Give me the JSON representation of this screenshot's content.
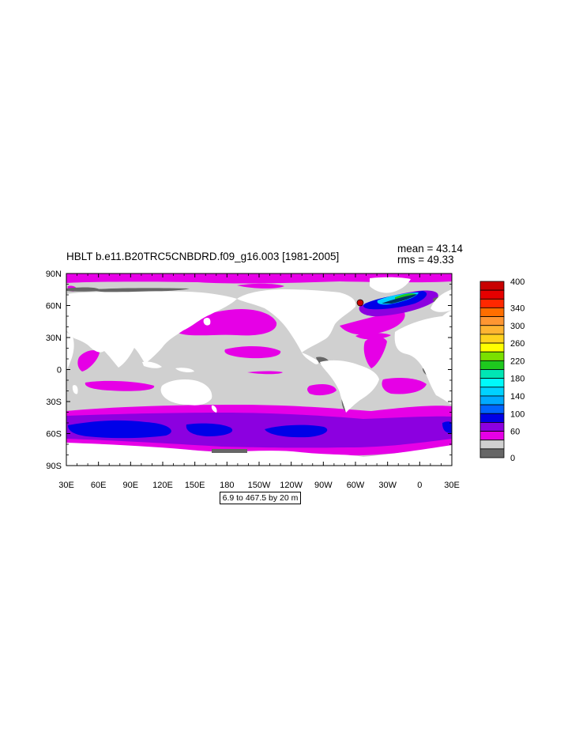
{
  "figure": {
    "title": "HBLT b.e11.B20TRC5CNBDRD.f09_g16.003 [1981-2005]",
    "mean_text": "mean = 43.14",
    "rms_text": "rms = 49.33",
    "contour_info": "6.9 to 467.5 by 20 m"
  },
  "map": {
    "variable": "HBLT",
    "projection": "cylindrical equidistant",
    "lon_range": [
      "30E",
      "30E"
    ],
    "lat_range": [
      "90S",
      "90N"
    ],
    "lat_ticks": [
      "90N",
      "60N",
      "30N",
      "0",
      "30S",
      "60S",
      "90S"
    ],
    "lon_ticks": [
      "30E",
      "60E",
      "90E",
      "120E",
      "150E",
      "180",
      "150W",
      "120W",
      "90W",
      "60W",
      "30W",
      "0",
      "30E"
    ],
    "land_color": "#ffffff",
    "colors": {
      "magenta": "#e600e6",
      "purple": "#8c00e0",
      "blue": "#0000e8",
      "light_gray": "#d0d0d0",
      "dark_gray": "#666666"
    }
  },
  "colorbar": {
    "labels": [
      "400",
      "340",
      "300",
      "260",
      "220",
      "180",
      "140",
      "100",
      "60",
      "0"
    ],
    "bins": [
      {
        "color": "#c80000"
      },
      {
        "color": "#e60000"
      },
      {
        "color": "#ff2800"
      },
      {
        "color": "#ff6e00"
      },
      {
        "color": "#ff9632"
      },
      {
        "color": "#ffb432"
      },
      {
        "color": "#ffd21e"
      },
      {
        "color": "#ffff00"
      },
      {
        "color": "#7ae000"
      },
      {
        "color": "#1ec81e"
      },
      {
        "color": "#00e6b4"
      },
      {
        "color": "#00fafa"
      },
      {
        "color": "#00d2ff"
      },
      {
        "color": "#00aaff"
      },
      {
        "color": "#0064ff"
      },
      {
        "color": "#0000e6"
      },
      {
        "color": "#8c00e0"
      },
      {
        "color": "#e600e6"
      },
      {
        "color": "#d0d0d0"
      },
      {
        "color": "#666666"
      }
    ]
  }
}
